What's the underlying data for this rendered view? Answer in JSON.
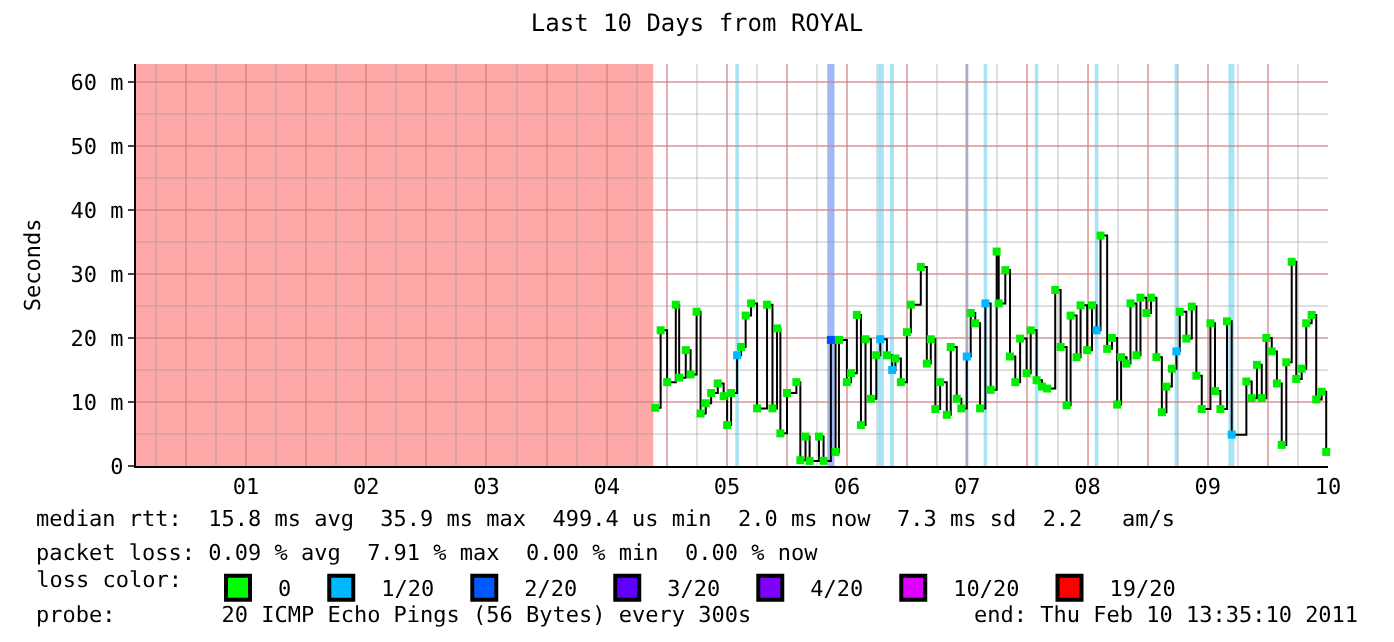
{
  "chart_data": {
    "type": "step",
    "title": "Last 10 Days from ROYAL",
    "ylabel": "Seconds",
    "legend_title": "loss color:",
    "annotations": [
      "median rtt:  15.8 ms avg  35.9 ms max  499.4 us min  2.0 ms now  7.3 ms sd  2.2   am/s",
      "packet loss: 0.09 % avg  7.91 % max  0.00 % min  0.00 % now",
      "probe:        20 ICMP Echo Pings (56 Bytes) every 300s",
      "end: Thu Feb 10 13:35:10 2011"
    ],
    "xlim": [
      0.585,
      10.5
    ],
    "ylim": [
      0,
      62.8
    ],
    "xticks": [
      {
        "value": 1,
        "label": null
      },
      {
        "value": 1.5,
        "label": "01"
      },
      {
        "value": 2,
        "label": null
      },
      {
        "value": 2.5,
        "label": "02"
      },
      {
        "value": 3,
        "label": null
      },
      {
        "value": 3.5,
        "label": "03"
      },
      {
        "value": 4,
        "label": null
      },
      {
        "value": 4.5,
        "label": "04"
      },
      {
        "value": 5,
        "label": null
      },
      {
        "value": 5.5,
        "label": "05"
      },
      {
        "value": 6,
        "label": null
      },
      {
        "value": 6.5,
        "label": "06"
      },
      {
        "value": 7,
        "label": null
      },
      {
        "value": 7.5,
        "label": "07"
      },
      {
        "value": 8,
        "label": null
      },
      {
        "value": 8.5,
        "label": "08"
      },
      {
        "value": 9,
        "label": null
      },
      {
        "value": 9.5,
        "label": "09"
      },
      {
        "value": 10,
        "label": null
      },
      {
        "value": 10.5,
        "label": "10"
      }
    ],
    "yticks": [
      0,
      {
        "value": 10,
        "label": "10 m"
      },
      {
        "value": 20,
        "label": "20 m"
      },
      {
        "value": 30,
        "label": "30 m"
      },
      {
        "value": 40,
        "label": "40 m"
      },
      {
        "value": 50,
        "label": "50 m"
      },
      {
        "value": 60,
        "label": "60 m"
      }
    ],
    "grid": true,
    "legend": "bottom",
    "marker": "square",
    "line_style": "solid",
    "bands": [
      {
        "axis": "x",
        "from": 0.585,
        "to": 4.887,
        "color": "#ffa8a8"
      },
      {
        "axis": "x",
        "from": 5.57,
        "to": 5.6,
        "color": "#a8e4f8"
      },
      {
        "axis": "x",
        "from": 6.335,
        "to": 6.395,
        "color": "#a0b8f4"
      },
      {
        "axis": "x",
        "from": 6.755,
        "to": 6.805,
        "color": "#a8e4f8"
      },
      {
        "axis": "x",
        "from": 6.855,
        "to": 6.89,
        "color": "#a8e4f8"
      },
      {
        "axis": "x",
        "from": 7.48,
        "to": 7.51,
        "color": "#a8e4f8"
      },
      {
        "axis": "x",
        "from": 7.635,
        "to": 7.665,
        "color": "#a8e4f8"
      },
      {
        "axis": "x",
        "from": 8.061,
        "to": 8.091,
        "color": "#a8e4f8"
      },
      {
        "axis": "x",
        "from": 8.56,
        "to": 8.59,
        "color": "#a8e4f8"
      },
      {
        "axis": "x",
        "from": 9.224,
        "to": 9.254,
        "color": "#a8e4f8"
      },
      {
        "axis": "x",
        "from": 9.671,
        "to": 9.721,
        "color": "#a8e4f8"
      }
    ],
    "series": [
      {
        "color": "#000000",
        "x": [
          4.904,
          4.949,
          5.003,
          5.075,
          5.103,
          5.158,
          5.198,
          5.248,
          5.281,
          5.324,
          5.369,
          5.424,
          5.473,
          5.502,
          5.535,
          5.585,
          5.618,
          5.656,
          5.701,
          5.751,
          5.834,
          5.879,
          5.917,
          5.945,
          6.0,
          6.078,
          6.111,
          6.154,
          6.188,
          6.266,
          6.304,
          6.365,
          6.404,
          6.432,
          6.498,
          6.532,
          6.581,
          6.615,
          6.653,
          6.698,
          6.743,
          6.776,
          6.831,
          6.875,
          6.902,
          6.947,
          6.997,
          7.03,
          7.113,
          7.163,
          7.196,
          7.234,
          7.274,
          7.329,
          7.362,
          7.412,
          7.45,
          7.495,
          7.528,
          7.566,
          7.606,
          7.65,
          7.694,
          7.744,
          7.761,
          7.816,
          7.855,
          7.899,
          7.939,
          7.993,
          8.027,
          8.076,
          8.121,
          8.164,
          8.231,
          8.276,
          8.326,
          8.359,
          8.409,
          8.442,
          8.497,
          8.537,
          8.575,
          8.608,
          8.663,
          8.703,
          8.746,
          8.779,
          8.824,
          8.857,
          8.907,
          8.94,
          8.99,
          9.028,
          9.073,
          9.118,
          9.156,
          9.201,
          9.239,
          9.267,
          9.322,
          9.367,
          9.405,
          9.45,
          9.522,
          9.56,
          9.605,
          9.66,
          9.699,
          9.821,
          9.865,
          9.909,
          9.949,
          9.987,
          10.032,
          10.075,
          10.115,
          10.153,
          10.198,
          10.236,
          10.281,
          10.319,
          10.364,
          10.402,
          10.447,
          10.485
        ],
        "values": [
          9.1,
          21.2,
          13.1,
          25.2,
          13.8,
          18.1,
          14.3,
          24.1,
          8.2,
          9.8,
          11.4,
          12.9,
          10.9,
          6.4,
          11.4,
          17.3,
          18.6,
          23.5,
          25.4,
          9.0,
          25.2,
          9.0,
          21.5,
          5.1,
          11.4,
          13.1,
          0.9,
          4.6,
          0.8,
          4.6,
          0.8,
          19.7,
          2.2,
          19.7,
          13.1,
          14.5,
          23.6,
          6.4,
          19.8,
          10.5,
          17.3,
          19.8,
          17.3,
          15.0,
          16.8,
          13.1,
          20.9,
          25.2,
          31.1,
          16.0,
          19.8,
          8.9,
          13.1,
          8.0,
          18.6,
          10.5,
          9.0,
          17.1,
          23.9,
          22.3,
          9.0,
          25.4,
          11.9,
          33.5,
          25.4,
          30.6,
          17.1,
          13.1,
          19.9,
          14.5,
          21.2,
          13.4,
          12.4,
          12.1,
          27.5,
          18.6,
          9.5,
          23.5,
          17.0,
          25.1,
          18.1,
          25.1,
          21.2,
          36.0,
          18.3,
          20.0,
          9.6,
          17.0,
          16.0,
          25.4,
          17.3,
          26.3,
          23.9,
          26.3,
          17.0,
          8.4,
          12.4,
          15.2,
          17.9,
          24.1,
          19.9,
          24.9,
          14.1,
          8.9,
          22.3,
          11.7,
          8.9,
          22.6,
          4.9,
          13.2,
          10.6,
          15.8,
          10.6,
          20.0,
          17.9,
          12.9,
          3.3,
          16.2,
          31.9,
          13.6,
          15.2,
          22.3,
          23.6,
          10.4,
          11.6,
          2.2
        ],
        "colors": [
          "#00ee00",
          "#00ee00",
          "#00ee00",
          "#00ee00",
          "#00ee00",
          "#00ee00",
          "#00ee00",
          "#00ee00",
          "#00ee00",
          "#00ee00",
          "#00ee00",
          "#00ee00",
          "#00ee00",
          "#00ee00",
          "#00ee00",
          "#00b8ff",
          "#00ee00",
          "#00ee00",
          "#00ee00",
          "#00ee00",
          "#00ee00",
          "#00ee00",
          "#00ee00",
          "#00ee00",
          "#00ee00",
          "#00ee00",
          "#00ee00",
          "#00ee00",
          "#00ee00",
          "#00ee00",
          "#00ee00",
          "#0050ff",
          "#00ee00",
          "#00ee00",
          "#00ee00",
          "#00ee00",
          "#00ee00",
          "#00ee00",
          "#00ee00",
          "#00ee00",
          "#00ee00",
          "#00b8ff",
          "#00ee00",
          "#00b8ff",
          "#00ee00",
          "#00ee00",
          "#00ee00",
          "#00ee00",
          "#00ee00",
          "#00ee00",
          "#00ee00",
          "#00ee00",
          "#00ee00",
          "#00ee00",
          "#00ee00",
          "#00ee00",
          "#00ee00",
          "#00b8ff",
          "#00ee00",
          "#00ee00",
          "#00ee00",
          "#00b8ff",
          "#00ee00",
          "#00ee00",
          "#00ee00",
          "#00ee00",
          "#00ee00",
          "#00ee00",
          "#00ee00",
          "#00ee00",
          "#00ee00",
          "#00ee00",
          "#00ee00",
          "#00ee00",
          "#00ee00",
          "#00ee00",
          "#00ee00",
          "#00ee00",
          "#00ee00",
          "#00ee00",
          "#00ee00",
          "#00ee00",
          "#00b8ff",
          "#00ee00",
          "#00ee00",
          "#00ee00",
          "#00ee00",
          "#00ee00",
          "#00ee00",
          "#00ee00",
          "#00ee00",
          "#00ee00",
          "#00ee00",
          "#00ee00",
          "#00ee00",
          "#00ee00",
          "#00ee00",
          "#00ee00",
          "#00b8ff",
          "#00ee00",
          "#00ee00",
          "#00ee00",
          "#00ee00",
          "#00ee00",
          "#00ee00",
          "#00ee00",
          "#00ee00",
          "#00ee00",
          "#00b8ff",
          "#00ee00",
          "#00ee00",
          "#00ee00",
          "#00ee00",
          "#00ee00",
          "#00ee00",
          "#00ee00",
          "#00ee00",
          "#00ee00",
          "#00ee00",
          "#00ee00",
          "#00ee00",
          "#00ee00",
          "#00ee00",
          "#00ee00",
          "#00ee00",
          "#00ee00"
        ]
      },
      {
        "name": "0",
        "color": "#00ff00"
      },
      {
        "name": "1/20",
        "color": "#00b8ff"
      },
      {
        "name": "2/20",
        "color": "#0059ff"
      },
      {
        "name": "3/20",
        "color": "#5e00ff"
      },
      {
        "name": "4/20",
        "color": "#7e00ff"
      },
      {
        "name": "10/20",
        "color": "#dd00ff"
      },
      {
        "name": "19/20",
        "color": "#ff0000"
      }
    ]
  }
}
